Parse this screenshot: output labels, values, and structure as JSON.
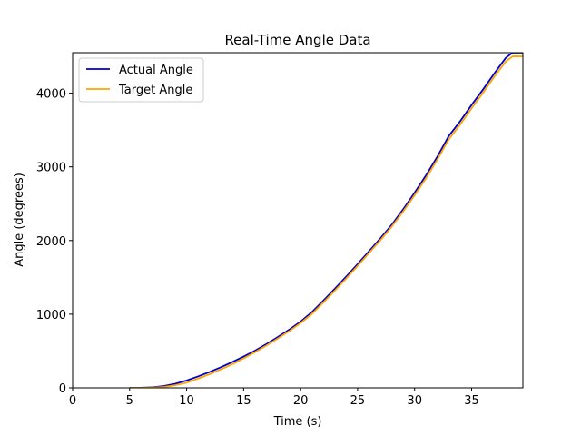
{
  "chart_data": {
    "type": "line",
    "title": "Real-Time Angle Data",
    "xlabel": "Time (s)",
    "ylabel": "Angle (degrees)",
    "xlim": [
      0,
      39.5
    ],
    "ylim": [
      0,
      4550
    ],
    "xticks": [
      0,
      5,
      10,
      15,
      20,
      25,
      30,
      35
    ],
    "yticks": [
      0,
      1000,
      2000,
      3000,
      4000
    ],
    "grid": false,
    "legend_position": "upper-left",
    "series": [
      {
        "name": "Actual Angle",
        "color": "#0000cc",
        "x": [
          5,
          6,
          7,
          8,
          9,
          10,
          11,
          12,
          13,
          14,
          15,
          16,
          17,
          18,
          19,
          20,
          21,
          22,
          23,
          24,
          25,
          26,
          27,
          28,
          29,
          30,
          31,
          32,
          33,
          34,
          35,
          36,
          37,
          38,
          38.6,
          39.5
        ],
        "y": [
          0,
          2,
          8,
          25,
          55,
          100,
          155,
          215,
          280,
          350,
          425,
          505,
          595,
          690,
          790,
          900,
          1030,
          1185,
          1345,
          1510,
          1680,
          1855,
          2030,
          2215,
          2425,
          2650,
          2885,
          3140,
          3420,
          3620,
          3840,
          4050,
          4270,
          4480,
          4550,
          4550
        ]
      },
      {
        "name": "Target Angle",
        "color": "#ffa500",
        "x": [
          5,
          6,
          7,
          8,
          9,
          10,
          11,
          12,
          13,
          14,
          15,
          16,
          17,
          18,
          19,
          20,
          21,
          22,
          23,
          24,
          25,
          26,
          27,
          28,
          29,
          30,
          31,
          32,
          33,
          34,
          35,
          36,
          37,
          38,
          38.6,
          39.5
        ],
        "y": [
          0,
          0,
          3,
          12,
          35,
          70,
          125,
          185,
          250,
          320,
          400,
          485,
          575,
          670,
          770,
          880,
          1005,
          1160,
          1320,
          1485,
          1655,
          1830,
          2005,
          2190,
          2395,
          2615,
          2845,
          3100,
          3375,
          3575,
          3795,
          4005,
          4225,
          4430,
          4500,
          4500
        ]
      }
    ]
  }
}
